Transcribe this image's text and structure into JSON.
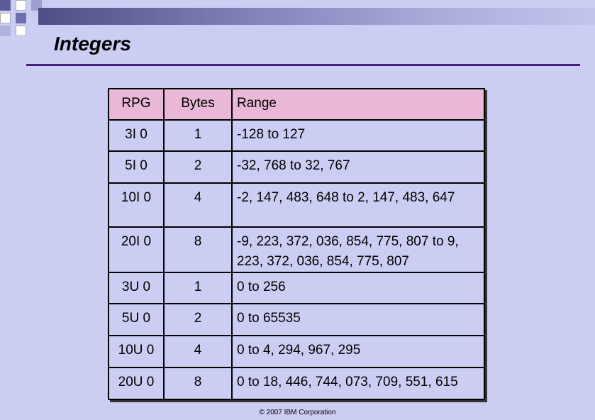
{
  "title": "Integers",
  "table": {
    "headers": [
      "RPG",
      "Bytes",
      "Range"
    ],
    "rows": [
      {
        "rpg": "3I 0",
        "bytes": "1",
        "range": "-128 to 127"
      },
      {
        "rpg": "5I 0",
        "bytes": "2",
        "range": "-32, 768 to 32, 767"
      },
      {
        "rpg": "10I 0",
        "bytes": "4",
        "range": "-2, 147, 483, 648 to 2, 147, 483, 647"
      },
      {
        "rpg": "20I 0",
        "bytes": "8",
        "range": "-9, 223, 372, 036, 854, 775, 807 to 9, 223, 372, 036, 854, 775, 807"
      },
      {
        "rpg": "3U 0",
        "bytes": "1",
        "range": "0 to 256"
      },
      {
        "rpg": "5U 0",
        "bytes": "2",
        "range": "0 to 65535"
      },
      {
        "rpg": "10U 0",
        "bytes": "4",
        "range": "0 to 4, 294, 967, 295"
      },
      {
        "rpg": "20U 0",
        "bytes": "8",
        "range": "0 to 18, 446, 744, 073, 709, 551, 615"
      }
    ]
  },
  "footer": "© 2007 IBM Corporation",
  "colors": {
    "background": "#cccdf2",
    "header_fill": "#e8b8d6",
    "rule": "#4a1d86",
    "bar_dark": "#4d4e86"
  }
}
